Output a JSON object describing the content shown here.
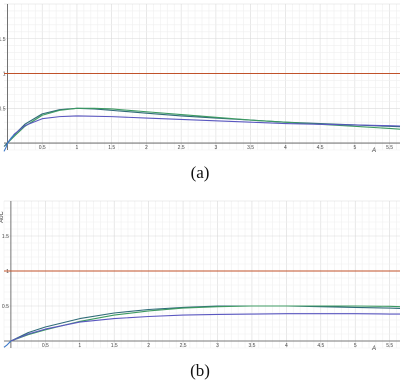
{
  "chart_data": [
    {
      "type": "line",
      "panel_label": "(a)",
      "xlabel": "A",
      "ylabel": "AoC",
      "xlim": [
        -0.05,
        5.65
      ],
      "ylim": [
        -0.1,
        2.0
      ],
      "x_ticks": [
        "0.5",
        "1",
        "1.5",
        "2",
        "2.5",
        "3",
        "3.5",
        "4",
        "4.5",
        "5",
        "5.5"
      ],
      "y_ticks": [
        "0.5",
        "1",
        "1.5"
      ],
      "grid": true,
      "reference_line": {
        "y": 1.0,
        "color": "#c0522a"
      },
      "series": [
        {
          "color": "#2f6b78",
          "x": [
            -0.05,
            0,
            0.1,
            0.25,
            0.5,
            0.75,
            1.0,
            1.25,
            1.5,
            2.0,
            2.5,
            3.0,
            3.5,
            4.0,
            4.5,
            5.0,
            5.5,
            5.65
          ],
          "y": [
            -0.05,
            0.0,
            0.12,
            0.27,
            0.42,
            0.48,
            0.5,
            0.49,
            0.47,
            0.43,
            0.39,
            0.36,
            0.33,
            0.3,
            0.28,
            0.26,
            0.24,
            0.235
          ]
        },
        {
          "color": "#3d9a62",
          "x": [
            0,
            0.1,
            0.25,
            0.5,
            0.75,
            1.0,
            1.25,
            1.5,
            2.0,
            2.5,
            3.0,
            3.5,
            4.0,
            4.5,
            5.0,
            5.5,
            5.65
          ],
          "y": [
            0.0,
            0.1,
            0.24,
            0.4,
            0.47,
            0.5,
            0.5,
            0.49,
            0.45,
            0.41,
            0.37,
            0.33,
            0.3,
            0.27,
            0.24,
            0.21,
            0.2
          ]
        },
        {
          "color": "#5a57c0",
          "x": [
            0,
            0.1,
            0.25,
            0.5,
            0.75,
            1.0,
            1.5,
            2.0,
            2.5,
            3.0,
            3.5,
            4.0,
            4.5,
            5.0,
            5.5,
            5.65
          ],
          "y": [
            0.0,
            0.13,
            0.25,
            0.35,
            0.38,
            0.39,
            0.38,
            0.36,
            0.34,
            0.32,
            0.3,
            0.28,
            0.27,
            0.26,
            0.25,
            0.245
          ]
        },
        {
          "color": "#3c78c8",
          "x": [
            -0.05,
            -0.02,
            0,
            0.05,
            0.1
          ],
          "y": [
            -0.12,
            -0.06,
            0.0,
            0.07,
            0.12
          ]
        }
      ]
    },
    {
      "type": "line",
      "panel_label": "(b)",
      "xlabel": "A",
      "ylabel": "AoC",
      "xlim": [
        -0.1,
        5.65
      ],
      "ylim": [
        -0.1,
        2.0
      ],
      "x_ticks": [
        "0.5",
        "1",
        "1.5",
        "2",
        "2.5",
        "3",
        "3.5",
        "4",
        "4.5",
        "5",
        "5.5"
      ],
      "y_ticks": [
        "0.5",
        "1",
        "1.5"
      ],
      "grid": true,
      "reference_line": {
        "y": 1.0,
        "color": "#c0522a"
      },
      "series": [
        {
          "color": "#2f6b78",
          "x": [
            0,
            0.25,
            0.5,
            1.0,
            1.5,
            2.0,
            2.5,
            3.0,
            3.5,
            4.0,
            4.5,
            5.0,
            5.5,
            5.65
          ],
          "y": [
            0.0,
            0.12,
            0.2,
            0.32,
            0.4,
            0.45,
            0.48,
            0.5,
            0.5,
            0.5,
            0.49,
            0.48,
            0.47,
            0.465
          ]
        },
        {
          "color": "#3d9a62",
          "x": [
            0,
            0.25,
            0.5,
            1.0,
            1.5,
            2.0,
            2.5,
            3.0,
            3.5,
            4.0,
            4.5,
            5.0,
            5.5,
            5.65
          ],
          "y": [
            0.0,
            0.09,
            0.16,
            0.28,
            0.37,
            0.43,
            0.47,
            0.49,
            0.5,
            0.5,
            0.5,
            0.5,
            0.495,
            0.49
          ]
        },
        {
          "color": "#5a57c0",
          "x": [
            0,
            0.25,
            0.5,
            1.0,
            1.5,
            2.0,
            2.5,
            3.0,
            3.5,
            4.0,
            4.5,
            5.0,
            5.5,
            5.65
          ],
          "y": [
            0.0,
            0.1,
            0.17,
            0.27,
            0.32,
            0.35,
            0.37,
            0.38,
            0.385,
            0.39,
            0.39,
            0.39,
            0.385,
            0.385
          ]
        },
        {
          "color": "#3c78c8",
          "x": [
            -0.1,
            -0.06,
            -0.03,
            0
          ],
          "y": [
            -0.09,
            -0.06,
            -0.03,
            0.0
          ]
        }
      ]
    }
  ]
}
